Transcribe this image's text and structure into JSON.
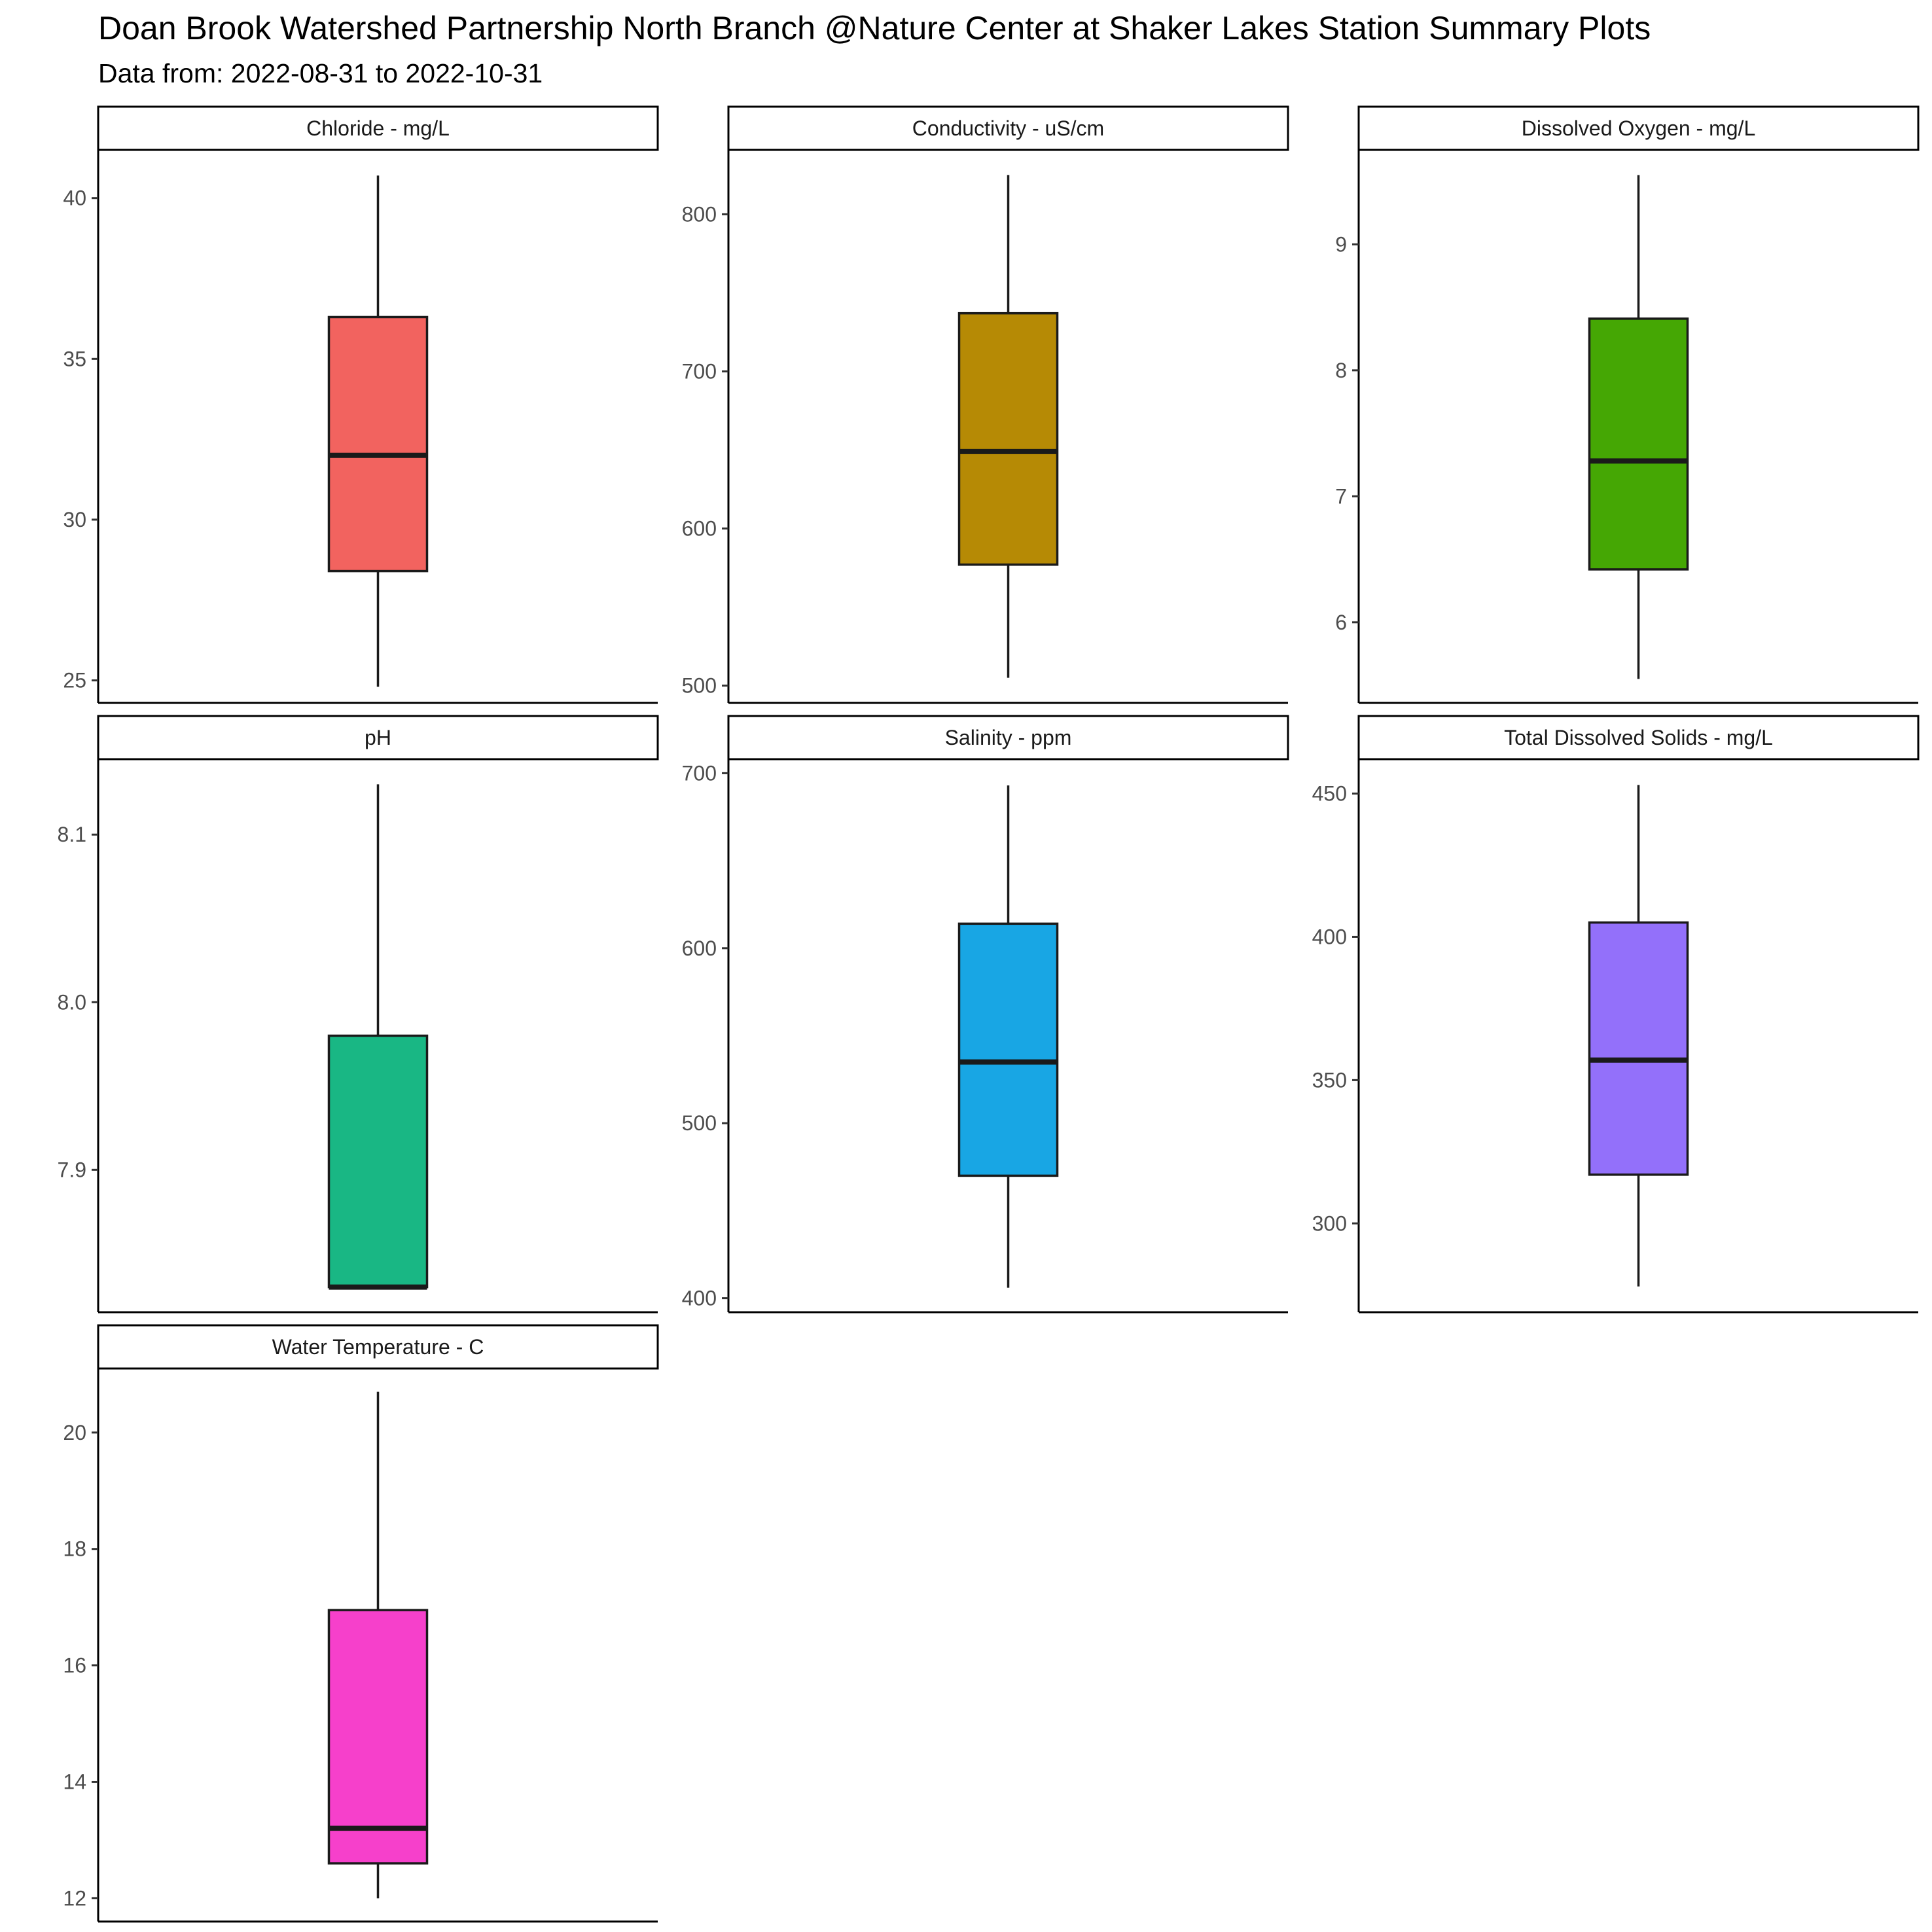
{
  "title": "Doan Brook Watershed Partnership North Branch @Nature Center at Shaker Lakes Station Summary Plots",
  "subtitle": "Data from: 2022-08-31 to 2022-10-31",
  "chart_data": {
    "type": "boxplot",
    "title": "Doan Brook Watershed Partnership North Branch @Nature Center at Shaker Lakes Station Summary Plots",
    "subtitle": "Data from: 2022-08-31 to 2022-10-31",
    "layout": "facet grid, 3 columns, independent y scales",
    "grid": false,
    "legend": "none",
    "panels": [
      {
        "label": "Chloride - mg/L",
        "color": "#F263A0",
        "fill": "#F2635F",
        "min": 24.8,
        "q1": 28.4,
        "median": 32.0,
        "q3": 36.3,
        "max": 40.7,
        "ylim": [
          24.3,
          41.5
        ],
        "ticks": [
          25,
          30,
          35,
          40
        ],
        "tick_labels": [
          "25",
          "30",
          "35",
          "40"
        ]
      },
      {
        "label": "Conductivity - uS/cm",
        "fill": "#B68A05",
        "min": 505,
        "q1": 577,
        "median": 649,
        "q3": 737,
        "max": 825,
        "ylim": [
          489,
          841
        ],
        "ticks": [
          500,
          600,
          700,
          800
        ],
        "tick_labels": [
          "500",
          "600",
          "700",
          "800"
        ]
      },
      {
        "label": "Dissolved Oxygen - mg/L",
        "fill": "#45A704",
        "min": 5.55,
        "q1": 6.42,
        "median": 7.28,
        "q3": 8.41,
        "max": 9.55,
        "ylim": [
          5.36,
          9.75
        ],
        "ticks": [
          6,
          7,
          8,
          9
        ],
        "tick_labels": [
          "6",
          "7",
          "8",
          "9"
        ]
      },
      {
        "label": "pH",
        "fill": "#19B784",
        "min": 7.83,
        "q1": 7.83,
        "median": 7.83,
        "q3": 7.98,
        "max": 8.13,
        "ylim": [
          7.815,
          8.145
        ],
        "ticks": [
          7.9,
          8.0,
          8.1
        ],
        "tick_labels": [
          "7.9",
          "8.0",
          "8.1"
        ]
      },
      {
        "label": "Salinity - ppm",
        "fill": "#18A6E4",
        "min": 406,
        "q1": 470,
        "median": 535,
        "q3": 614,
        "max": 693,
        "ylim": [
          392,
          708
        ],
        "ticks": [
          400,
          500,
          600,
          700
        ],
        "tick_labels": [
          "400",
          "500",
          "600",
          "700"
        ]
      },
      {
        "label": "Total Dissolved Solids - mg/L",
        "fill": "#9370FA",
        "min": 278,
        "q1": 317,
        "median": 357,
        "q3": 405,
        "max": 453,
        "ylim": [
          269,
          462
        ],
        "ticks": [
          300,
          350,
          400,
          450
        ],
        "tick_labels": [
          "300",
          "350",
          "400",
          "450"
        ]
      },
      {
        "label": "Water Temperature - C",
        "fill": "#F640CB",
        "min": 12.0,
        "q1": 12.6,
        "median": 13.2,
        "q3": 16.95,
        "max": 20.7,
        "ylim": [
          11.6,
          21.1
        ],
        "ticks": [
          12,
          14,
          16,
          18,
          20
        ],
        "tick_labels": [
          "12",
          "14",
          "16",
          "18",
          "20"
        ]
      }
    ]
  }
}
